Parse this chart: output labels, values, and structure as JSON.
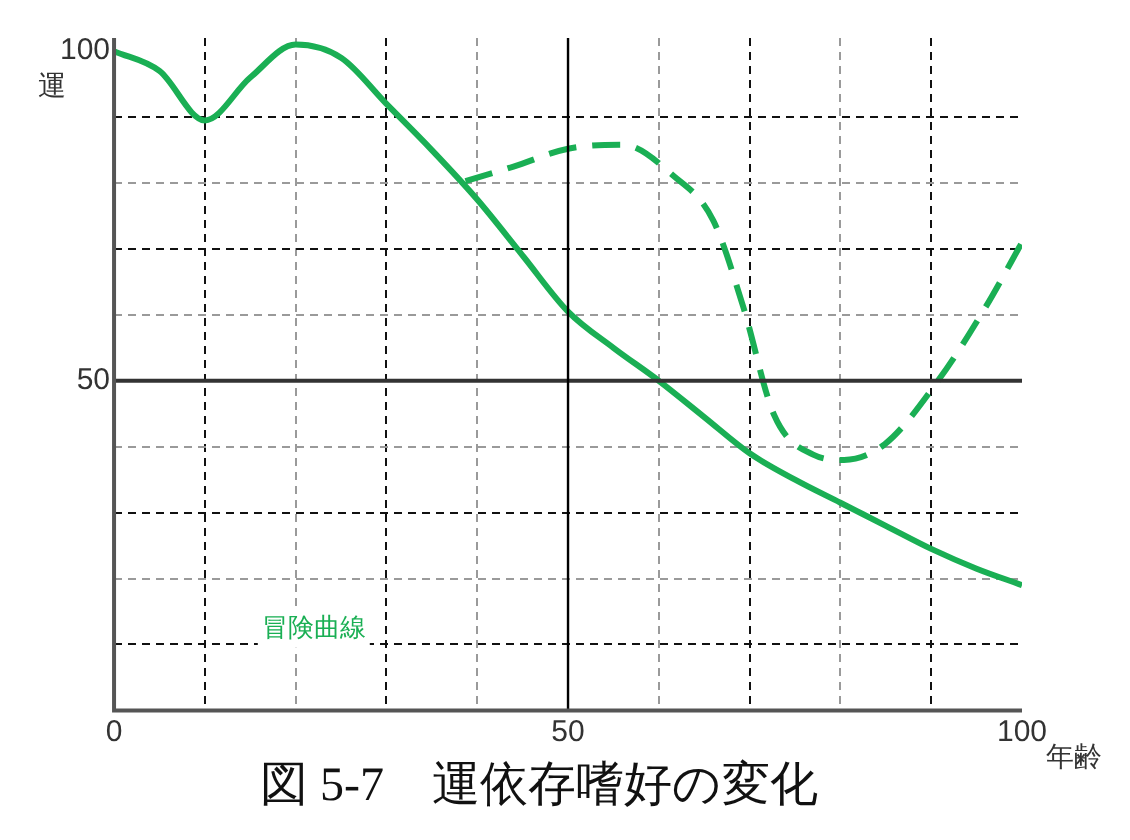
{
  "chart_data": {
    "type": "line",
    "title": "図 5-7　運依存嗜好の変化",
    "xlabel": "年齢",
    "ylabel": "運",
    "xlim": [
      0,
      100
    ],
    "ylim": [
      0,
      102
    ],
    "xticks": [
      0,
      {
        "value": 10,
        "label": null
      },
      {
        "value": 20,
        "label": null
      },
      {
        "value": 30,
        "label": null
      },
      {
        "value": 40,
        "label": null
      },
      50,
      {
        "value": 60,
        "label": null
      },
      {
        "value": 70,
        "label": null
      },
      {
        "value": 80,
        "label": null
      },
      {
        "value": 90,
        "label": null
      },
      100
    ],
    "yticks": [
      {
        "value": 0,
        "label": null
      },
      {
        "value": 10,
        "label": null
      },
      {
        "value": 20,
        "label": null
      },
      {
        "value": 30,
        "label": null
      },
      {
        "value": 40,
        "label": null
      },
      50,
      {
        "value": 60,
        "label": null
      },
      {
        "value": 70,
        "label": null
      },
      {
        "value": 80,
        "label": null
      },
      {
        "value": 90,
        "label": null
      },
      100
    ],
    "grid": true,
    "marker": "none",
    "ref_lines": [
      {
        "axis": "y",
        "value": 50,
        "color": "#333333"
      },
      {
        "axis": "x",
        "value": 50,
        "color": "#000000"
      }
    ],
    "annotations": [
      "冒険曲線"
    ],
    "series": [
      {
        "color": "#1aaf54",
        "line_style": "solid",
        "x": [
          0,
          5,
          10,
          15,
          20,
          25,
          30,
          35,
          40,
          45,
          50,
          55,
          60,
          65,
          70,
          75,
          80,
          85,
          90,
          95,
          100
        ],
        "values": [
          100,
          97,
          89.5,
          96,
          101,
          99,
          92,
          85,
          77.5,
          69,
          60.5,
          55,
          50,
          44.5,
          39,
          35,
          31.5,
          28,
          24.5,
          21.5,
          19
        ]
      },
      {
        "color": "#1aaf54",
        "line_style": "dashed",
        "x": [
          38.7,
          44,
          50,
          56,
          61.6,
          66,
          69.3,
          72.7,
          77,
          80.4,
          84.9,
          90.9,
          96,
          100
        ],
        "values": [
          80.3,
          82.5,
          85.2,
          85.8,
          81.1,
          74.3,
          61.2,
          44.8,
          38.8,
          38,
          40.4,
          50.3,
          61.2,
          71
        ]
      }
    ]
  }
}
